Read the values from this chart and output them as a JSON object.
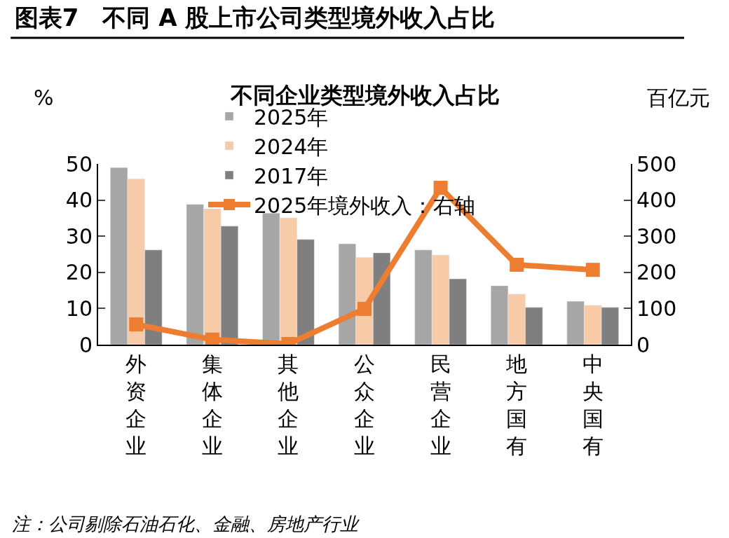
{
  "chart_data": {
    "type": "bar",
    "title": "图表7　不同 A 股上市公司类型境外收入占比",
    "subtitle": "不同企业类型境外收入占比",
    "ylabel": "%",
    "y2label": "百亿元",
    "categories": [
      "外资企业",
      "集体企业",
      "其他企业",
      "公众企业",
      "民营企业",
      "地方国有",
      "中央国有"
    ],
    "series": [
      {
        "name": "2025年",
        "color": "#a6a6a6",
        "values": [
          49,
          38.8,
          36.4,
          27.9,
          26.2,
          16.3,
          12
        ]
      },
      {
        "name": "2024年",
        "color": "#f8cba8",
        "values": [
          45.9,
          37.6,
          35.1,
          24.2,
          24.8,
          14,
          10.9
        ]
      },
      {
        "name": "2017年",
        "color": "#7f7f7f",
        "values": [
          26.2,
          32.8,
          29.1,
          25.4,
          18.2,
          10.3,
          10.3
        ]
      },
      {
        "name": "2025年境外收入：右轴",
        "color": "#ed7d31",
        "type": "line",
        "axis": "y2",
        "marker": "square",
        "values": [
          56,
          14,
          2,
          99,
          434,
          221,
          207
        ]
      }
    ],
    "ylim": [
      0,
      50
    ],
    "yticks": [
      0,
      10,
      20,
      30,
      40,
      50
    ],
    "y2lim": [
      0,
      500
    ],
    "y2ticks": [
      0,
      100,
      200,
      300,
      400,
      500
    ],
    "legend": "top",
    "annotations": [
      "注：公司剔除石油石化、金融、房地产行业"
    ]
  }
}
